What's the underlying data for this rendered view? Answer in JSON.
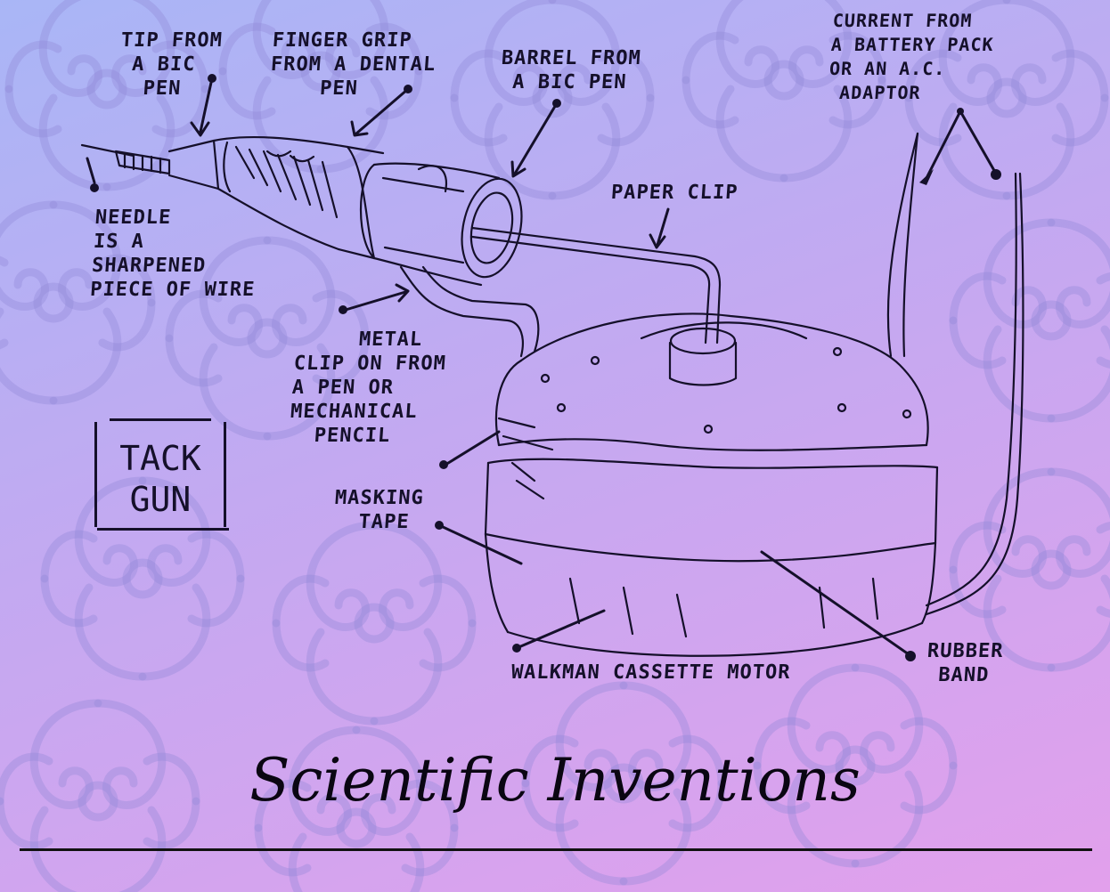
{
  "labels": {
    "tip": "TIP FROM\n A BIC\n  PEN",
    "finger_grip": "FINGER GRIP\nFROM A DENTAL\n    PEN",
    "barrel": "BARREL FROM\n A BIC PEN",
    "battery": "CURRENT FROM\nA BATTERY PACK\nOR AN A.C.\n ADAPTOR",
    "paper_clip": "PAPER CLIP",
    "needle": "NEEDLE\nIS A\nSHARPENED\nPIECE OF WIRE",
    "metal_clip": "     METAL\nCLIP ON FROM\nA PEN OR\nMECHANICAL\n  PENCIL",
    "masking_tape": "MASKING\n  TAPE",
    "rubber_band": "RUBBER\n BAND",
    "motor": "WALKMAN CASSETTE MOTOR"
  },
  "tack_gun": "TACK\nGUN",
  "title": "Scientific Inventions"
}
